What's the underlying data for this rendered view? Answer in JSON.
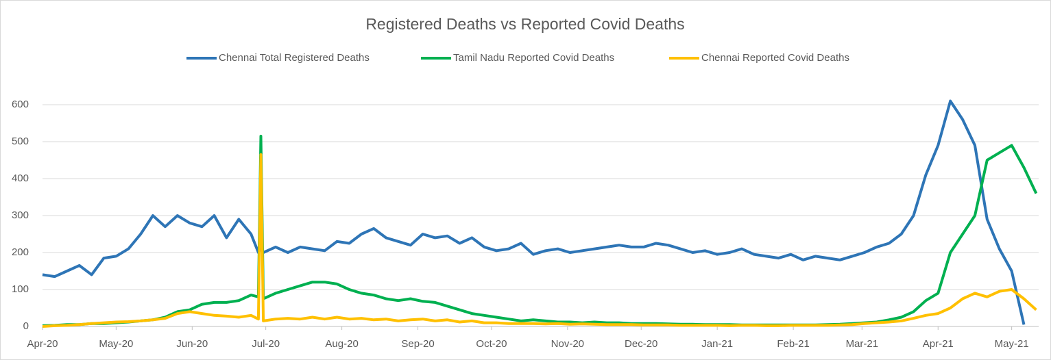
{
  "chart_data": {
    "type": "line",
    "title": "Registered Deaths vs Reported Covid Deaths",
    "x": [
      0,
      5,
      10,
      15,
      20,
      25,
      30,
      35,
      40,
      45,
      50,
      55,
      60,
      65,
      70,
      75,
      80,
      85,
      88,
      89,
      90,
      95,
      100,
      105,
      110,
      115,
      120,
      125,
      130,
      135,
      140,
      145,
      150,
      155,
      160,
      165,
      170,
      175,
      180,
      185,
      190,
      195,
      200,
      205,
      210,
      215,
      220,
      225,
      230,
      235,
      240,
      245,
      250,
      255,
      260,
      265,
      270,
      275,
      280,
      285,
      290,
      295,
      300,
      305,
      310,
      315,
      320,
      325,
      330,
      335,
      340,
      345,
      350,
      355,
      360,
      365,
      370,
      375,
      380,
      385,
      390,
      395,
      400,
      405
    ],
    "series": [
      {
        "name": "Chennai Total Registered Deaths",
        "color": "#2e75b6",
        "values": [
          140,
          135,
          150,
          165,
          140,
          185,
          190,
          210,
          250,
          300,
          270,
          300,
          280,
          270,
          300,
          240,
          290,
          250,
          200,
          210,
          200,
          215,
          200,
          215,
          210,
          205,
          230,
          225,
          250,
          265,
          240,
          230,
          220,
          250,
          240,
          245,
          225,
          240,
          215,
          205,
          210,
          225,
          195,
          205,
          210,
          200,
          205,
          210,
          215,
          220,
          215,
          215,
          225,
          220,
          210,
          200,
          205,
          195,
          200,
          210,
          195,
          190,
          185,
          195,
          180,
          190,
          185,
          180,
          190,
          200,
          215,
          225,
          250,
          300,
          410,
          490,
          610,
          560,
          490,
          290,
          210,
          150,
          5,
          null
        ]
      },
      {
        "name": "Tamil Nadu Reported Covid Deaths",
        "color": "#00b050",
        "values": [
          2,
          3,
          5,
          5,
          8,
          8,
          10,
          12,
          15,
          18,
          25,
          40,
          45,
          60,
          65,
          65,
          70,
          85,
          80,
          515,
          75,
          90,
          100,
          110,
          120,
          120,
          115,
          100,
          90,
          85,
          75,
          70,
          75,
          68,
          65,
          55,
          45,
          35,
          30,
          25,
          20,
          15,
          18,
          15,
          12,
          12,
          10,
          12,
          10,
          10,
          8,
          8,
          8,
          7,
          6,
          6,
          5,
          5,
          5,
          4,
          4,
          4,
          4,
          4,
          4,
          4,
          5,
          6,
          8,
          10,
          12,
          18,
          25,
          40,
          70,
          90,
          200,
          250,
          300,
          450,
          470,
          490,
          430,
          360
        ]
      },
      {
        "name": "Chennai Reported Covid Deaths",
        "color": "#ffc000",
        "values": [
          0,
          2,
          3,
          5,
          8,
          10,
          12,
          13,
          15,
          18,
          22,
          35,
          40,
          35,
          30,
          28,
          25,
          30,
          20,
          465,
          15,
          20,
          22,
          20,
          25,
          20,
          25,
          20,
          22,
          18,
          20,
          15,
          18,
          20,
          15,
          18,
          12,
          15,
          10,
          10,
          8,
          8,
          8,
          7,
          8,
          6,
          7,
          6,
          5,
          5,
          5,
          4,
          4,
          4,
          3,
          3,
          3,
          3,
          2,
          3,
          3,
          2,
          2,
          3,
          3,
          3,
          3,
          4,
          5,
          8,
          10,
          12,
          15,
          22,
          30,
          35,
          50,
          75,
          90,
          80,
          95,
          100,
          75,
          45
        ]
      }
    ],
    "xlim": [
      0,
      406
    ],
    "xticks": [
      {
        "value": 0,
        "label": "Apr-20"
      },
      {
        "value": 30,
        "label": "May-20"
      },
      {
        "value": 61,
        "label": "Jun-20"
      },
      {
        "value": 91,
        "label": "Jul-20"
      },
      {
        "value": 122,
        "label": "Aug-20"
      },
      {
        "value": 153,
        "label": "Sep-20"
      },
      {
        "value": 183,
        "label": "Oct-20"
      },
      {
        "value": 214,
        "label": "Nov-20"
      },
      {
        "value": 244,
        "label": "Dec-20"
      },
      {
        "value": 275,
        "label": "Jan-21"
      },
      {
        "value": 306,
        "label": "Feb-21"
      },
      {
        "value": 334,
        "label": "Mar-21"
      },
      {
        "value": 365,
        "label": "Apr-21"
      },
      {
        "value": 395,
        "label": "May-21"
      }
    ],
    "ylim": [
      0,
      650
    ],
    "yticks": [
      0,
      100,
      200,
      300,
      400,
      500,
      600
    ],
    "grid": true,
    "legend": "top"
  }
}
